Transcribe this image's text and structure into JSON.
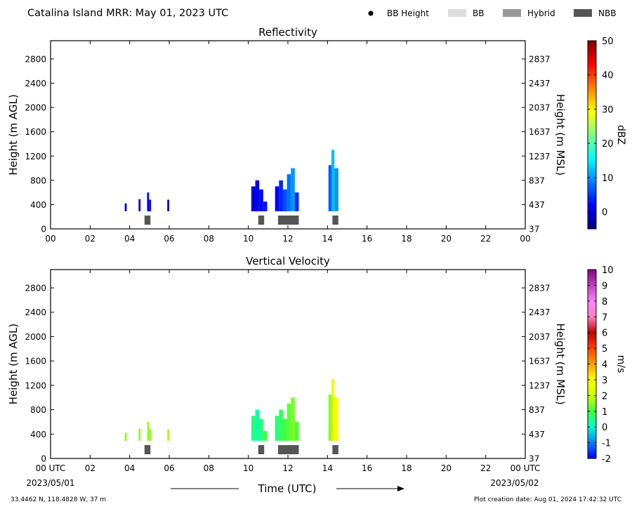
{
  "header": {
    "title": "Catalina Island MRR:  May 01, 2023 UTC",
    "legend": [
      {
        "label": "BB Height",
        "kind": "dot",
        "color": "#000000"
      },
      {
        "label": "BB",
        "kind": "rect",
        "color": "#dddddd"
      },
      {
        "label": "Hybrid",
        "kind": "rect",
        "color": "#999999"
      },
      {
        "label": "NBB",
        "kind": "rect",
        "color": "#555555"
      }
    ]
  },
  "footer": {
    "location": "33.4462 N, 118.4828 W, 37 m",
    "creation": "Plot creation date: Aug 01, 2024 17:42:32 UTC",
    "xlabel": "Time (UTC)",
    "date_left": "2023/05/01",
    "date_right": "2023/05/02"
  },
  "chart_data": [
    {
      "type": "heatmap",
      "title": "Reflectivity",
      "ylabel": "Height (m AGL)",
      "ylabel_right": "Height (m MSL)",
      "xlim": [
        0,
        24
      ],
      "ylim": [
        0,
        3100
      ],
      "x_ticks": [
        "00",
        "02",
        "04",
        "06",
        "08",
        "10",
        "12",
        "14",
        "16",
        "18",
        "20",
        "22",
        "00"
      ],
      "y_ticks": [
        0,
        400,
        800,
        1200,
        1600,
        2000,
        2400,
        2800
      ],
      "y_ticks_right": [
        "37",
        "437",
        "837",
        "1237",
        "1637",
        "2037",
        "2437",
        "2837"
      ],
      "colorbar": {
        "label": "dBZ",
        "range": [
          -5,
          50
        ],
        "ticks": [
          0,
          10,
          20,
          30,
          40,
          50
        ],
        "colors": [
          "#00007f",
          "#0000ff",
          "#0080ff",
          "#00ffff",
          "#80ff80",
          "#ffff00",
          "#ff8000",
          "#ff0000",
          "#7f0000"
        ]
      },
      "columns": [
        {
          "t0": 3.75,
          "t1": 3.85,
          "bottom": 290,
          "top": 420,
          "value": 0
        },
        {
          "t0": 4.45,
          "t1": 4.55,
          "bottom": 290,
          "top": 490,
          "value": 0
        },
        {
          "t0": 4.88,
          "t1": 4.98,
          "bottom": 290,
          "top": 600,
          "value": 1
        },
        {
          "t0": 4.98,
          "t1": 5.08,
          "bottom": 290,
          "top": 480,
          "value": 1
        },
        {
          "t0": 5.9,
          "t1": 6.0,
          "bottom": 290,
          "top": 480,
          "value": 0
        },
        {
          "t0": 10.15,
          "t1": 10.35,
          "bottom": 290,
          "top": 700,
          "value": 0
        },
        {
          "t0": 10.35,
          "t1": 10.55,
          "bottom": 290,
          "top": 800,
          "value": 1
        },
        {
          "t0": 10.55,
          "t1": 10.75,
          "bottom": 290,
          "top": 650,
          "value": 2
        },
        {
          "t0": 10.75,
          "t1": 10.95,
          "bottom": 290,
          "top": 450,
          "value": 3
        },
        {
          "t0": 11.35,
          "t1": 11.55,
          "bottom": 290,
          "top": 700,
          "value": 2
        },
        {
          "t0": 11.55,
          "t1": 11.75,
          "bottom": 290,
          "top": 800,
          "value": 4
        },
        {
          "t0": 11.75,
          "t1": 11.95,
          "bottom": 290,
          "top": 650,
          "value": 6
        },
        {
          "t0": 11.95,
          "t1": 12.15,
          "bottom": 290,
          "top": 900,
          "value": 8
        },
        {
          "t0": 12.15,
          "t1": 12.35,
          "bottom": 290,
          "top": 1000,
          "value": 10
        },
        {
          "t0": 12.35,
          "t1": 12.55,
          "bottom": 290,
          "top": 600,
          "value": 4
        },
        {
          "t0": 14.05,
          "t1": 14.2,
          "bottom": 290,
          "top": 1050,
          "value": 7
        },
        {
          "t0": 14.2,
          "t1": 14.35,
          "bottom": 290,
          "top": 1300,
          "value": 12
        },
        {
          "t0": 14.35,
          "t1": 14.55,
          "bottom": 290,
          "top": 1000,
          "value": 10
        }
      ],
      "nbb_blocks": [
        [
          4.75,
          5.05
        ],
        [
          10.5,
          10.8
        ],
        [
          11.5,
          12.55
        ],
        [
          14.25,
          14.55
        ]
      ]
    },
    {
      "type": "heatmap",
      "title": "Vertical Velocity",
      "ylabel": "Height (m AGL)",
      "ylabel_right": "Height (m MSL)",
      "xlim": [
        0,
        24
      ],
      "ylim": [
        0,
        3100
      ],
      "x_ticks": [
        "00 UTC",
        "02",
        "04",
        "06",
        "08",
        "10",
        "12",
        "14",
        "16",
        "18",
        "20",
        "22",
        "00 UTC"
      ],
      "y_ticks": [
        0,
        400,
        800,
        1200,
        1600,
        2000,
        2400,
        2800
      ],
      "y_ticks_right": [
        "37",
        "437",
        "837",
        "1237",
        "1637",
        "2037",
        "2437",
        "2837"
      ],
      "colorbar": {
        "label": "m/s",
        "range": [
          -2,
          10
        ],
        "ticks": [
          -2,
          -1,
          0,
          1,
          2,
          3,
          4,
          5,
          6,
          7,
          8,
          9,
          10
        ],
        "colors": [
          "#0000ff",
          "#0080ff",
          "#00ffcc",
          "#40ff40",
          "#ccff00",
          "#ffff00",
          "#ffa000",
          "#ff4000",
          "#c00000",
          "#ff80c0",
          "#ff80ff",
          "#c040c0",
          "#800080"
        ]
      },
      "columns": [
        {
          "t0": 3.75,
          "t1": 3.85,
          "bottom": 290,
          "top": 420,
          "value": 1.5
        },
        {
          "t0": 4.45,
          "t1": 4.55,
          "bottom": 290,
          "top": 490,
          "value": 1.5
        },
        {
          "t0": 4.88,
          "t1": 4.98,
          "bottom": 290,
          "top": 600,
          "value": 1.6
        },
        {
          "t0": 4.98,
          "t1": 5.08,
          "bottom": 290,
          "top": 480,
          "value": 1.5
        },
        {
          "t0": 5.9,
          "t1": 6.0,
          "bottom": 290,
          "top": 480,
          "value": 1.8
        },
        {
          "t0": 10.15,
          "t1": 10.35,
          "bottom": 290,
          "top": 700,
          "value": 0.5
        },
        {
          "t0": 10.35,
          "t1": 10.55,
          "bottom": 290,
          "top": 800,
          "value": 0.3
        },
        {
          "t0": 10.55,
          "t1": 10.75,
          "bottom": 290,
          "top": 650,
          "value": 0.6
        },
        {
          "t0": 10.75,
          "t1": 10.95,
          "bottom": 290,
          "top": 450,
          "value": 1.0
        },
        {
          "t0": 11.35,
          "t1": 11.55,
          "bottom": 290,
          "top": 700,
          "value": 0.6
        },
        {
          "t0": 11.55,
          "t1": 11.75,
          "bottom": 290,
          "top": 800,
          "value": 0.8
        },
        {
          "t0": 11.75,
          "t1": 11.95,
          "bottom": 290,
          "top": 650,
          "value": 1.0
        },
        {
          "t0": 11.95,
          "t1": 12.15,
          "bottom": 290,
          "top": 900,
          "value": 1.2
        },
        {
          "t0": 12.15,
          "t1": 12.35,
          "bottom": 290,
          "top": 1000,
          "value": 1.4
        },
        {
          "t0": 12.35,
          "t1": 12.55,
          "bottom": 290,
          "top": 600,
          "value": 1.1
        },
        {
          "t0": 14.05,
          "t1": 14.2,
          "bottom": 290,
          "top": 1050,
          "value": 1.5
        },
        {
          "t0": 14.2,
          "t1": 14.35,
          "bottom": 290,
          "top": 1300,
          "value": 2.6
        },
        {
          "t0": 14.35,
          "t1": 14.55,
          "bottom": 290,
          "top": 1000,
          "value": 2.9
        }
      ],
      "nbb_blocks": [
        [
          4.75,
          5.05
        ],
        [
          10.5,
          10.8
        ],
        [
          11.5,
          12.55
        ],
        [
          14.25,
          14.55
        ]
      ]
    }
  ]
}
